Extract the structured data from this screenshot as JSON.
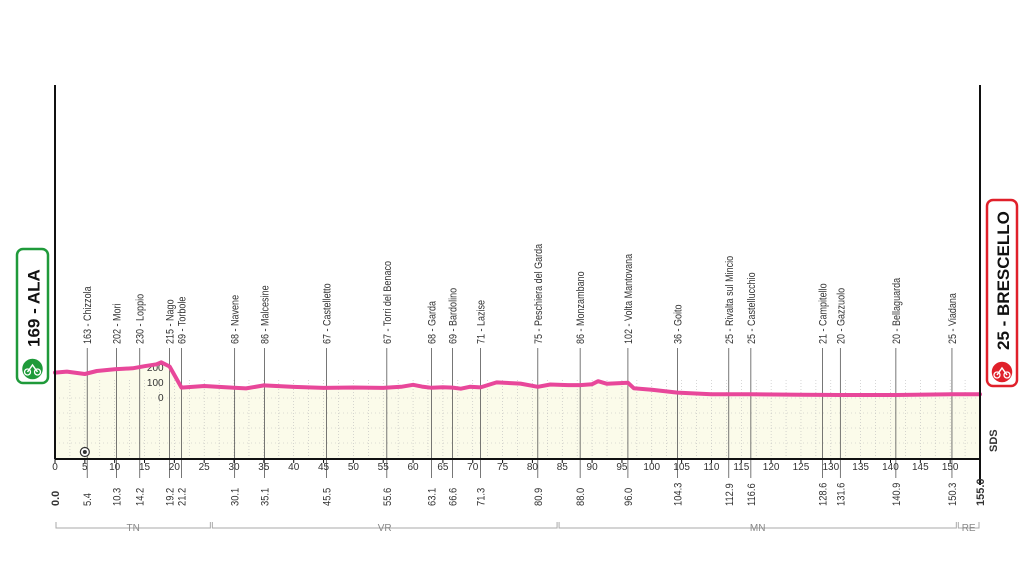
{
  "chart_data": {
    "type": "area",
    "title": "",
    "xlabel": "",
    "ylabel": "",
    "xlim": [
      0,
      155
    ],
    "x_ticks": [
      0,
      5,
      10,
      15,
      20,
      25,
      30,
      35,
      40,
      45,
      50,
      55,
      60,
      65,
      70,
      75,
      80,
      85,
      90,
      95,
      100,
      105,
      110,
      115,
      120,
      125,
      130,
      135,
      140,
      145,
      150
    ],
    "y_ticks": [
      0,
      100,
      200
    ],
    "grid": true,
    "line_color": "#e8479a",
    "fill_color": "#fbfbea",
    "start": {
      "label": "169 - ALA",
      "km": "0.0",
      "color": "#1f9a3a"
    },
    "finish": {
      "label": "25 - BRESCELLO",
      "km": "155.0",
      "color": "#e0202a"
    },
    "profile": [
      [
        0,
        169
      ],
      [
        2,
        176
      ],
      [
        5,
        160
      ],
      [
        7,
        180
      ],
      [
        10,
        192
      ],
      [
        13,
        198
      ],
      [
        15,
        212
      ],
      [
        17,
        225
      ],
      [
        17.8,
        238
      ],
      [
        19.2,
        210
      ],
      [
        21.2,
        69
      ],
      [
        25,
        80
      ],
      [
        30,
        68
      ],
      [
        32,
        64
      ],
      [
        35,
        84
      ],
      [
        40,
        74
      ],
      [
        45,
        67
      ],
      [
        50,
        70
      ],
      [
        55,
        67
      ],
      [
        58,
        75
      ],
      [
        60,
        88
      ],
      [
        61.5,
        76
      ],
      [
        63.1,
        68
      ],
      [
        65,
        72
      ],
      [
        66.6,
        69
      ],
      [
        68,
        62
      ],
      [
        69.5,
        75
      ],
      [
        71.3,
        71
      ],
      [
        74,
        104
      ],
      [
        78,
        96
      ],
      [
        80.9,
        75
      ],
      [
        83,
        90
      ],
      [
        86,
        86
      ],
      [
        88,
        86
      ],
      [
        90,
        92
      ],
      [
        91,
        112
      ],
      [
        92.5,
        95
      ],
      [
        96,
        102
      ],
      [
        97,
        65
      ],
      [
        100,
        55
      ],
      [
        104.3,
        36
      ],
      [
        110,
        25
      ],
      [
        116.6,
        25
      ],
      [
        125,
        22
      ],
      [
        128.6,
        21
      ],
      [
        131.6,
        20
      ],
      [
        140.9,
        20
      ],
      [
        150.3,
        25
      ],
      [
        155,
        25
      ]
    ],
    "waypoints": [
      {
        "name": "163 - Chizzola",
        "km": "5.4"
      },
      {
        "name": "202 - Mori",
        "km": "10.3"
      },
      {
        "name": "230 - Loppio",
        "km": "14.2"
      },
      {
        "name": "215 - Nago",
        "km": "19.2"
      },
      {
        "name": "69 - Torbole",
        "km": "21.2"
      },
      {
        "name": "68 - Navene",
        "km": "30.1"
      },
      {
        "name": "86 - Malcesine",
        "km": "35.1"
      },
      {
        "name": "67 - Castelletto",
        "km": "45.5"
      },
      {
        "name": "67 - Torri del Benaco",
        "km": "55.6"
      },
      {
        "name": "68 - Garda",
        "km": "63.1"
      },
      {
        "name": "69 - Bardolino",
        "km": "66.6"
      },
      {
        "name": "71 - Lazise",
        "km": "71.3"
      },
      {
        "name": "75 - Peschiera del Garda",
        "km": "80.9"
      },
      {
        "name": "86 - Monzambano",
        "km": "88.0"
      },
      {
        "name": "102 - Volta Mantovana",
        "km": "96.0"
      },
      {
        "name": "36 - Goito",
        "km": "104.3"
      },
      {
        "name": "25 - Rivalta sul Mincio",
        "km": "112.9"
      },
      {
        "name": "25 - Castellucchio",
        "km": "116.6"
      },
      {
        "name": "21 - Campitello",
        "km": "128.6"
      },
      {
        "name": "20 - Gazzuolo",
        "km": "131.6"
      },
      {
        "name": "20 - Bellaguarda",
        "km": "140.9"
      },
      {
        "name": "25 - Viadana",
        "km": "150.3"
      }
    ],
    "sprint_marker_km": 5,
    "regions": [
      {
        "label": "TN",
        "from": 0,
        "to": 26.2
      },
      {
        "label": "VR",
        "from": 26.2,
        "to": 84.3
      },
      {
        "label": "MN",
        "from": 84.3,
        "to": 151.2
      },
      {
        "label": "RE",
        "from": 151.2,
        "to": 155
      }
    ],
    "logo": "SDS"
  }
}
